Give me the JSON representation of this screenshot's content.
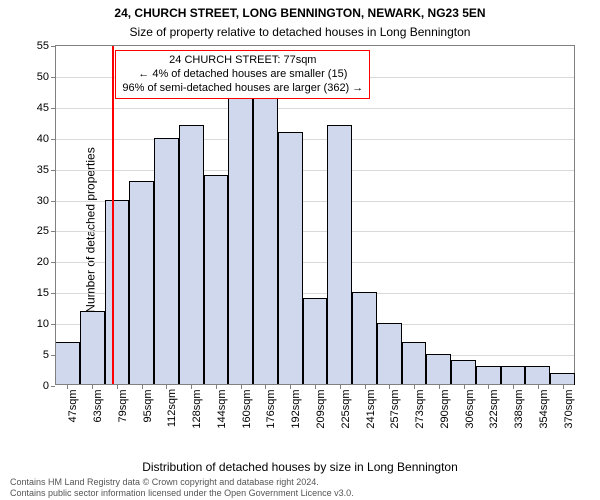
{
  "titles": {
    "main": "24, CHURCH STREET, LONG BENNINGTON, NEWARK, NG23 5EN",
    "sub": "Size of property relative to detached houses in Long Bennington",
    "main_fontsize": 12,
    "sub_fontsize": 12,
    "color": "#000000"
  },
  "ylabel": {
    "text": "Number of detached properties",
    "fontsize": 12,
    "color": "#000000"
  },
  "xlabel": {
    "text": "Distribution of detached houses by size in Long Bennington",
    "fontsize": 12,
    "color": "#000000"
  },
  "attribution": {
    "line1": "Contains HM Land Registry data © Crown copyright and database right 2024.",
    "line2": "Contains public sector information licensed under the Open Government Licence v3.0.",
    "fontsize": 9,
    "color": "#555555"
  },
  "chart": {
    "type": "histogram",
    "background_color": "#ffffff",
    "axis_color": "#808080",
    "grid_color": "#d9d9d9",
    "ylim": [
      0,
      55
    ],
    "ytick_step": 5,
    "tick_fontsize": 11,
    "tick_color": "#000000",
    "xtick_labels": [
      "47sqm",
      "63sqm",
      "79sqm",
      "95sqm",
      "112sqm",
      "128sqm",
      "144sqm",
      "160sqm",
      "176sqm",
      "192sqm",
      "209sqm",
      "225sqm",
      "241sqm",
      "257sqm",
      "273sqm",
      "290sqm",
      "306sqm",
      "322sqm",
      "338sqm",
      "354sqm",
      "370sqm"
    ],
    "n_bars": 21,
    "values": [
      7,
      12,
      30,
      33,
      40,
      42,
      34,
      48,
      51,
      41,
      14,
      42,
      15,
      10,
      7,
      5,
      4,
      3,
      3,
      3,
      2
    ],
    "bar_fill": "#cfd8ed",
    "bar_stroke": "#000000",
    "bar_stroke_width": 1,
    "bar_width_ratio": 1.0
  },
  "refline": {
    "value_sqm": 77,
    "color": "#ff0000",
    "width": 2
  },
  "annotation": {
    "line1": "24 CHURCH STREET: 77sqm",
    "line2": "← 4% of detached houses are smaller (15)",
    "line3": "96% of semi-detached houses are larger (362) →",
    "border_color": "#ff0000",
    "background": "#ffffff",
    "fontsize": 11,
    "text_color": "#000000"
  }
}
